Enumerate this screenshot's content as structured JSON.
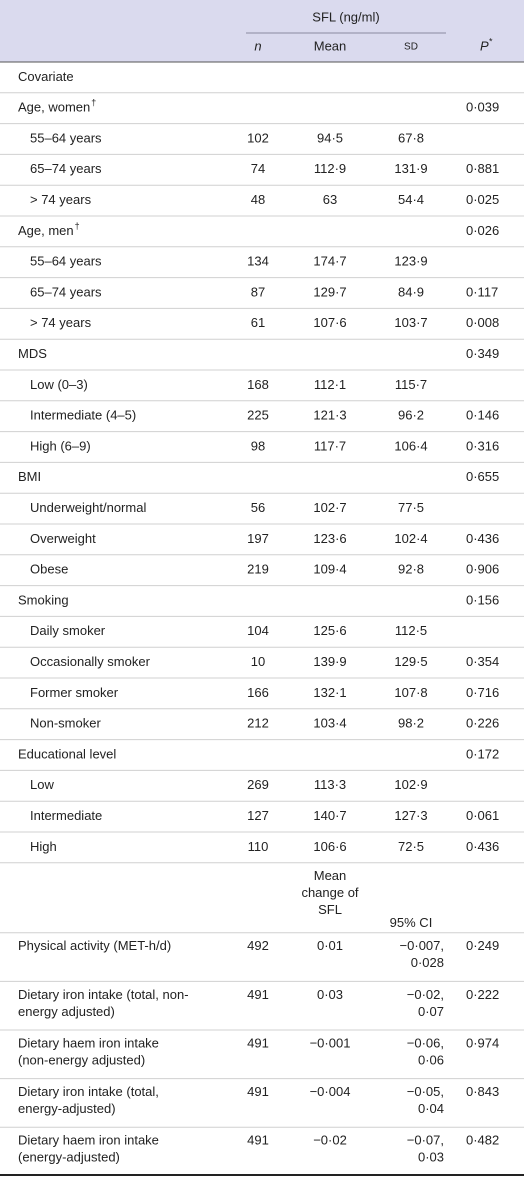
{
  "table": {
    "header": {
      "group": "SFL (ng/ml)",
      "columns": {
        "n": "n",
        "mean": "Mean",
        "sd": "SD",
        "p": "P",
        "p_mark": "*"
      }
    },
    "caption_row": "Covariate",
    "groups": [
      {
        "label": "Age, women",
        "mark": "†",
        "p": "0·039",
        "items": [
          {
            "label": "55–64 years",
            "n": "102",
            "mean": "94·5",
            "sd": "67·8"
          },
          {
            "label": "65–74 years",
            "n": "74",
            "mean": "112·9",
            "sd": "131·9",
            "p": "0·881"
          },
          {
            "label": "> 74 years",
            "n": "48",
            "mean": "63",
            "sd": "54·4",
            "p": "0·025"
          }
        ]
      },
      {
        "label": "Age, men",
        "mark": "†",
        "p": "0·026",
        "items": [
          {
            "label": "55–64 years",
            "n": "134",
            "mean": "174·7",
            "sd": "123·9"
          },
          {
            "label": "65–74 years",
            "n": "87",
            "mean": "129·7",
            "sd": "84·9",
            "p": "0·117"
          },
          {
            "label": "> 74 years",
            "n": "61",
            "mean": "107·6",
            "sd": "103·7",
            "p": "0·008"
          }
        ]
      },
      {
        "label": "MDS",
        "p": "0·349",
        "items": [
          {
            "label": "Low (0–3)",
            "n": "168",
            "mean": "112·1",
            "sd": "115·7"
          },
          {
            "label": "Intermediate (4–5)",
            "n": "225",
            "mean": "121·3",
            "sd": "96·2",
            "p": "0·146"
          },
          {
            "label": "High (6–9)",
            "n": "98",
            "mean": "117·7",
            "sd": "106·4",
            "p": "0·316"
          }
        ]
      },
      {
        "label": "BMI",
        "p": "0·655",
        "items": [
          {
            "label": "Underweight/normal",
            "n": "56",
            "mean": "102·7",
            "sd": "77·5"
          },
          {
            "label": "Overweight",
            "n": "197",
            "mean": "123·6",
            "sd": "102·4",
            "p": "0·436"
          },
          {
            "label": "Obese",
            "n": "219",
            "mean": "109·4",
            "sd": "92·8",
            "p": "0·906"
          }
        ]
      },
      {
        "label": "Smoking",
        "p": "0·156",
        "items": [
          {
            "label": "Daily smoker",
            "n": "104",
            "mean": "125·6",
            "sd": "112·5"
          },
          {
            "label": "Occasionally smoker",
            "n": "10",
            "mean": "139·9",
            "sd": "129·5",
            "p": "0·354"
          },
          {
            "label": "Former smoker",
            "n": "166",
            "mean": "132·1",
            "sd": "107·8",
            "p": "0·716"
          },
          {
            "label": "Non-smoker",
            "n": "212",
            "mean": "103·4",
            "sd": "98·2",
            "p": "0·226"
          }
        ]
      },
      {
        "label": "Educational level",
        "p": "0·172",
        "items": [
          {
            "label": "Low",
            "n": "269",
            "mean": "113·3",
            "sd": "102·9"
          },
          {
            "label": "Intermediate",
            "n": "127",
            "mean": "140·7",
            "sd": "127·3",
            "p": "0·061"
          },
          {
            "label": "High",
            "n": "110",
            "mean": "106·6",
            "sd": "72·5",
            "p": "0·436"
          }
        ]
      }
    ],
    "continuous_header": {
      "mean_change": [
        "Mean",
        "change of",
        "SFL"
      ],
      "ci": "95% CI"
    },
    "continuous": [
      {
        "label": [
          "Physical activity (MET-h/d)"
        ],
        "n": "492",
        "mean": "0·01",
        "ci": [
          "−0·007,",
          "0·028"
        ],
        "p": "0·249"
      },
      {
        "label": [
          "Dietary iron intake (total, non-",
          "energy adjusted)"
        ],
        "n": "491",
        "mean": "0·03",
        "ci": [
          "−0·02,",
          "0·07"
        ],
        "p": "0·222"
      },
      {
        "label": [
          "Dietary haem iron intake",
          "(non-energy adjusted)"
        ],
        "n": "491",
        "mean": "−0·001",
        "ci": [
          "−0·06,",
          "0·06"
        ],
        "p": "0·974"
      },
      {
        "label": [
          "Dietary iron intake (total,",
          "energy-adjusted)"
        ],
        "n": "491",
        "mean": "−0·004",
        "ci": [
          "−0·05,",
          "0·04"
        ],
        "p": "0·843"
      },
      {
        "label": [
          "Dietary haem iron intake",
          "(energy-adjusted)"
        ],
        "n": "491",
        "mean": "−0·02",
        "ci": [
          "−0·07,",
          "0·03"
        ],
        "p": "0·482"
      }
    ]
  }
}
